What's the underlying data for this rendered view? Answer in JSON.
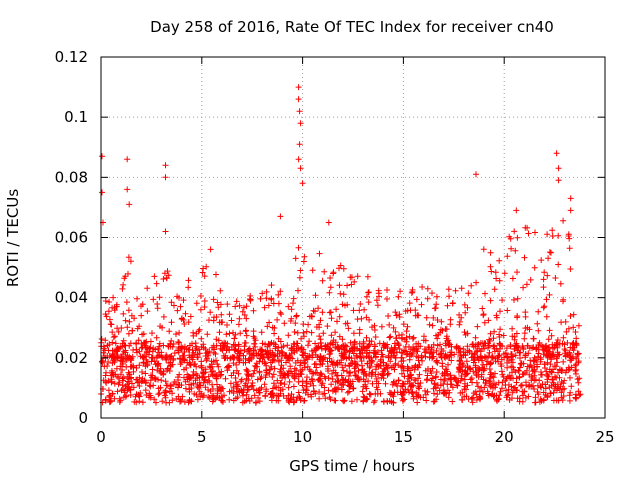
{
  "chart_data": {
    "type": "scatter",
    "title": "Day 258 of 2016, Rate Of TEC Index for receiver cn40",
    "xlabel": "GPS time / hours",
    "ylabel": "ROTI / TECUs",
    "xlim": [
      0,
      25
    ],
    "ylim": [
      0,
      0.12
    ],
    "x_ticks": [
      0,
      5,
      10,
      15,
      20,
      25
    ],
    "x_tick_labels": [
      "0",
      "5",
      "10",
      "15",
      "20",
      "25"
    ],
    "y_ticks": [
      0,
      0.02,
      0.04,
      0.06,
      0.08,
      0.1,
      0.12
    ],
    "y_tick_labels": [
      "0",
      "0.02",
      "0.04",
      "0.06",
      "0.08",
      "0.1",
      "0.12"
    ],
    "grid": true,
    "marker": "+",
    "series_color": "#ff0000",
    "outliers": [
      {
        "x": 0.05,
        "y": 0.087
      },
      {
        "x": 0.05,
        "y": 0.075
      },
      {
        "x": 0.1,
        "y": 0.065
      },
      {
        "x": 1.3,
        "y": 0.086
      },
      {
        "x": 1.3,
        "y": 0.076
      },
      {
        "x": 1.4,
        "y": 0.071
      },
      {
        "x": 3.2,
        "y": 0.084
      },
      {
        "x": 3.2,
        "y": 0.08
      },
      {
        "x": 3.2,
        "y": 0.062
      },
      {
        "x": 9.8,
        "y": 0.11
      },
      {
        "x": 9.8,
        "y": 0.106
      },
      {
        "x": 9.85,
        "y": 0.102
      },
      {
        "x": 9.9,
        "y": 0.098
      },
      {
        "x": 9.85,
        "y": 0.091
      },
      {
        "x": 9.8,
        "y": 0.086
      },
      {
        "x": 9.9,
        "y": 0.083
      },
      {
        "x": 10.0,
        "y": 0.078
      },
      {
        "x": 8.9,
        "y": 0.067
      },
      {
        "x": 11.3,
        "y": 0.065
      },
      {
        "x": 18.6,
        "y": 0.081
      },
      {
        "x": 22.6,
        "y": 0.088
      },
      {
        "x": 22.7,
        "y": 0.083
      },
      {
        "x": 22.7,
        "y": 0.079
      },
      {
        "x": 20.6,
        "y": 0.069
      },
      {
        "x": 23.3,
        "y": 0.073
      },
      {
        "x": 23.3,
        "y": 0.069
      }
    ],
    "activity_profile": [
      {
        "x": 0,
        "peak": 0.045
      },
      {
        "x": 1,
        "peak": 0.04
      },
      {
        "x": 1.3,
        "peak": 0.058
      },
      {
        "x": 2,
        "peak": 0.04
      },
      {
        "x": 3,
        "peak": 0.052
      },
      {
        "x": 4,
        "peak": 0.045
      },
      {
        "x": 5,
        "peak": 0.05
      },
      {
        "x": 5.4,
        "peak": 0.061
      },
      {
        "x": 6,
        "peak": 0.04
      },
      {
        "x": 7,
        "peak": 0.04
      },
      {
        "x": 8,
        "peak": 0.042
      },
      {
        "x": 9,
        "peak": 0.05
      },
      {
        "x": 10,
        "peak": 0.06
      },
      {
        "x": 11,
        "peak": 0.055
      },
      {
        "x": 12,
        "peak": 0.052
      },
      {
        "x": 13,
        "peak": 0.05
      },
      {
        "x": 14,
        "peak": 0.048
      },
      {
        "x": 15,
        "peak": 0.042
      },
      {
        "x": 16,
        "peak": 0.045
      },
      {
        "x": 17,
        "peak": 0.042
      },
      {
        "x": 18,
        "peak": 0.048
      },
      {
        "x": 19,
        "peak": 0.058
      },
      {
        "x": 20,
        "peak": 0.06
      },
      {
        "x": 21,
        "peak": 0.065
      },
      {
        "x": 22,
        "peak": 0.062
      },
      {
        "x": 23,
        "peak": 0.068
      },
      {
        "x": 23.8,
        "peak": 0.06
      }
    ],
    "baseline_range": [
      0.005,
      0.025
    ],
    "data_x_range": [
      0,
      23.8
    ]
  }
}
